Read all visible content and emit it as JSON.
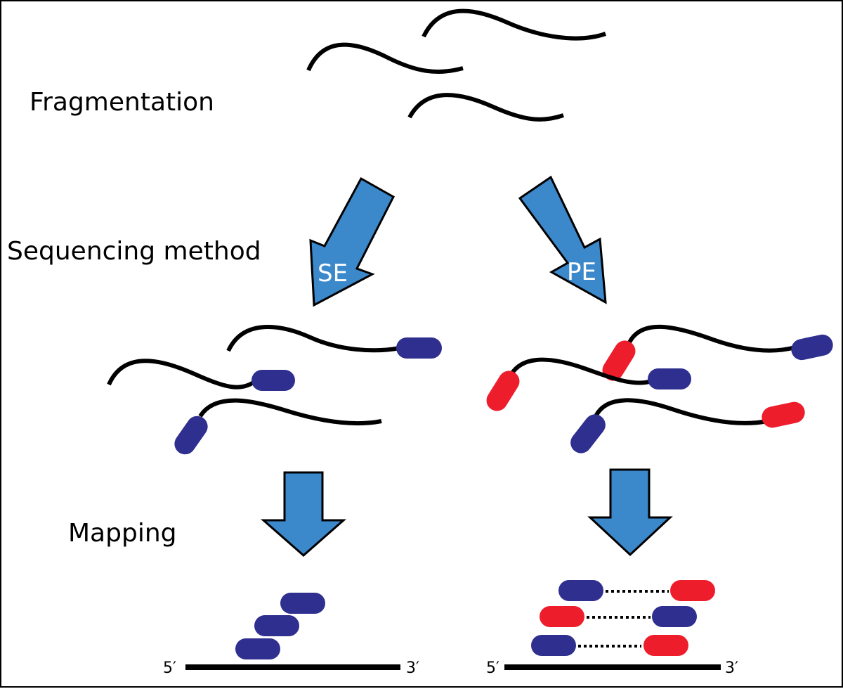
{
  "labels": {
    "fragmentation": "Fragmentation",
    "sequencing_method": "Sequencing method",
    "mapping": "Mapping"
  },
  "arrows": {
    "se_label": "SE",
    "pe_label": "PE"
  },
  "reference": {
    "five_prime": "5′",
    "three_prime": "3′"
  },
  "colors": {
    "arrow_fill": "#3b88cb",
    "read_forward": "#2f2f8f",
    "read_reverse": "#ee1d2b",
    "fragment": "#000000"
  }
}
